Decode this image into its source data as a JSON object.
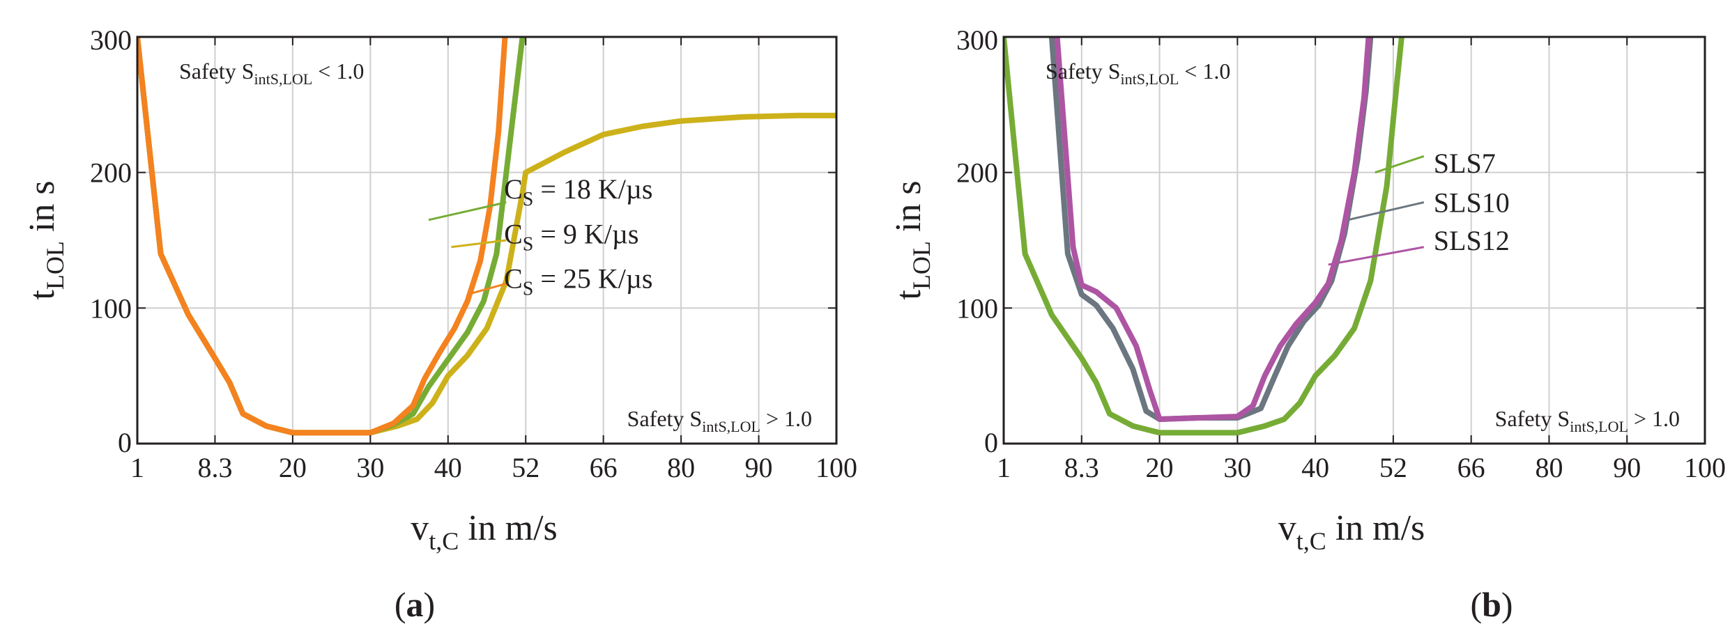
{
  "chart_data": [
    {
      "id": "a",
      "type": "line",
      "caption": {
        "open": "(",
        "letter": "a",
        "close": ")"
      },
      "xlabel": {
        "main": "v",
        "sub": "t,C",
        "rest": " in m/s"
      },
      "ylabel": {
        "main": "t",
        "sub": "LOL",
        "rest": " in s"
      },
      "x_ticks": [
        1,
        8.3,
        20,
        30,
        40,
        52,
        66,
        80,
        90,
        100
      ],
      "x_tick_labels": [
        "1",
        "8.3",
        "20",
        "30",
        "40",
        "52",
        "66",
        "80",
        "90",
        "100"
      ],
      "y_ticks": [
        0,
        100,
        200,
        300
      ],
      "y_tick_labels": [
        "0",
        "100",
        "200",
        "300"
      ],
      "ylim": [
        0,
        300
      ],
      "grid": true,
      "annotations": {
        "upper": {
          "main": "Safety S",
          "sub": "intS,LOL",
          "rest": " < 1.0"
        },
        "lower": {
          "main": "Safety S",
          "sub": "intS,LOL",
          "rest": " > 1.0"
        }
      },
      "series": [
        {
          "name": "C_S = 9 K/µs",
          "label_main": "C",
          "label_sub": "S",
          "label_rest": " = 9 K/µs",
          "color": "#cdb11a",
          "points": [
            [
              1,
              300
            ],
            [
              3.2,
              140
            ],
            [
              5.8,
              95
            ],
            [
              8.3,
              63
            ],
            [
              10.5,
              45
            ],
            [
              12.5,
              22
            ],
            [
              16,
              13
            ],
            [
              20,
              8
            ],
            [
              25,
              8
            ],
            [
              30,
              8
            ],
            [
              33.5,
              13
            ],
            [
              36,
              18
            ],
            [
              38,
              30
            ],
            [
              40,
              50
            ],
            [
              43,
              65
            ],
            [
              46,
              85
            ],
            [
              49,
              120
            ],
            [
              51.5,
              185
            ],
            [
              52,
              200
            ],
            [
              59,
              215
            ],
            [
              66,
              228
            ],
            [
              73,
              234
            ],
            [
              80,
              238
            ],
            [
              88,
              241
            ],
            [
              95,
              242
            ],
            [
              100,
              242
            ]
          ]
        },
        {
          "name": "C_S = 18 K/µs",
          "label_main": "C",
          "label_sub": "S",
          "label_rest": " = 18 K/µs",
          "color": "#76ac35",
          "points": [
            [
              1,
              300
            ],
            [
              3.2,
              140
            ],
            [
              5.8,
              95
            ],
            [
              8.3,
              63
            ],
            [
              10.5,
              45
            ],
            [
              12.5,
              22
            ],
            [
              16,
              13
            ],
            [
              20,
              8
            ],
            [
              25,
              8
            ],
            [
              30,
              8
            ],
            [
              33,
              14
            ],
            [
              35.5,
              22
            ],
            [
              37.5,
              42
            ],
            [
              40,
              62
            ],
            [
              43,
              82
            ],
            [
              45.5,
              105
            ],
            [
              47.5,
              140
            ],
            [
              49,
              200
            ],
            [
              50.5,
              260
            ],
            [
              51.5,
              300
            ]
          ]
        },
        {
          "name": "C_S = 25 K/µs",
          "label_main": "C",
          "label_sub": "S",
          "label_rest": " = 25 K/µs",
          "color": "#f4821f",
          "points": [
            [
              1,
              300
            ],
            [
              3.2,
              140
            ],
            [
              5.8,
              95
            ],
            [
              8.3,
              63
            ],
            [
              10.5,
              45
            ],
            [
              12.5,
              22
            ],
            [
              16,
              13
            ],
            [
              20,
              8
            ],
            [
              25,
              8
            ],
            [
              30,
              8
            ],
            [
              33,
              15
            ],
            [
              35.5,
              28
            ],
            [
              37,
              48
            ],
            [
              39,
              68
            ],
            [
              41,
              85
            ],
            [
              43,
              105
            ],
            [
              45,
              135
            ],
            [
              46.5,
              175
            ],
            [
              47.8,
              230
            ],
            [
              48.8,
              300
            ]
          ]
        }
      ],
      "legend": [
        {
          "series": 1,
          "label_x": 48,
          "label_y": 188,
          "line_from": [
            49,
            178
          ],
          "line_to": [
            37.5,
            165
          ]
        },
        {
          "series": 0,
          "label_x": 48,
          "label_y": 155,
          "line_from": [
            49,
            150
          ],
          "line_to": [
            40.5,
            145
          ]
        },
        {
          "series": 2,
          "label_x": 48,
          "label_y": 122,
          "line_from": [
            49,
            118
          ],
          "line_to": [
            43,
            110
          ]
        }
      ]
    },
    {
      "id": "b",
      "type": "line",
      "caption": {
        "open": "(",
        "letter": "b",
        "close": ")"
      },
      "xlabel": {
        "main": "v",
        "sub": "t,C",
        "rest": " in m/s"
      },
      "ylabel": {
        "main": "t",
        "sub": "LOL",
        "rest": " in s"
      },
      "x_ticks": [
        1,
        8.3,
        20,
        30,
        40,
        52,
        66,
        80,
        90,
        100
      ],
      "x_tick_labels": [
        "1",
        "8.3",
        "20",
        "30",
        "40",
        "52",
        "66",
        "80",
        "90",
        "100"
      ],
      "y_ticks": [
        0,
        100,
        200,
        300
      ],
      "y_tick_labels": [
        "0",
        "100",
        "200",
        "300"
      ],
      "ylim": [
        0,
        300
      ],
      "grid": true,
      "annotations": {
        "upper": {
          "main": "Safety S",
          "sub": "intS,LOL",
          "rest": " < 1.0"
        },
        "lower": {
          "main": "Safety S",
          "sub": "intS,LOL",
          "rest": " > 1.0"
        }
      },
      "series": [
        {
          "name": "SLS7",
          "label_main": "SLS7",
          "color": "#76ac35",
          "points": [
            [
              1,
              300
            ],
            [
              3,
              140
            ],
            [
              5.5,
              95
            ],
            [
              8.3,
              63
            ],
            [
              10.5,
              45
            ],
            [
              12.5,
              22
            ],
            [
              16,
              13
            ],
            [
              20,
              8
            ],
            [
              25,
              8
            ],
            [
              30,
              8
            ],
            [
              33.5,
              13
            ],
            [
              36,
              18
            ],
            [
              38,
              30
            ],
            [
              40,
              50
            ],
            [
              43,
              65
            ],
            [
              46,
              85
            ],
            [
              48.5,
              120
            ],
            [
              51,
              190
            ],
            [
              52.5,
              260
            ],
            [
              53.5,
              300
            ]
          ]
        },
        {
          "name": "SLS10",
          "label_main": "SLS10",
          "color": "#6b7680",
          "points": [
            [
              5.5,
              300
            ],
            [
              7,
              140
            ],
            [
              8.3,
              110
            ],
            [
              10.5,
              102
            ],
            [
              13,
              85
            ],
            [
              16,
              55
            ],
            [
              18,
              24
            ],
            [
              20,
              18
            ],
            [
              25,
              19
            ],
            [
              30,
              19
            ],
            [
              33,
              26
            ],
            [
              34.8,
              50
            ],
            [
              36.5,
              72
            ],
            [
              38.5,
              90
            ],
            [
              40.5,
              102
            ],
            [
              42.5,
              120
            ],
            [
              44.5,
              155
            ],
            [
              46.5,
              210
            ],
            [
              47.8,
              260
            ],
            [
              48.5,
              300
            ]
          ]
        },
        {
          "name": "SLS12",
          "label_main": "SLS12",
          "color": "#ad55a3",
          "points": [
            [
              6,
              300
            ],
            [
              7.5,
              145
            ],
            [
              8.3,
              117
            ],
            [
              10.5,
              112
            ],
            [
              13.5,
              100
            ],
            [
              16.5,
              72
            ],
            [
              18.5,
              40
            ],
            [
              20,
              18
            ],
            [
              25,
              19
            ],
            [
              30,
              20
            ],
            [
              32,
              28
            ],
            [
              33.5,
              50
            ],
            [
              35.5,
              72
            ],
            [
              37.5,
              88
            ],
            [
              40,
              104
            ],
            [
              42,
              118
            ],
            [
              44,
              150
            ],
            [
              46,
              200
            ],
            [
              47.5,
              255
            ],
            [
              48.2,
              300
            ]
          ]
        }
      ],
      "legend": [
        {
          "series": 0,
          "label_x": 58.5,
          "label_y": 207,
          "line_from": [
            57.5,
            212
          ],
          "line_to": [
            49.2,
            200
          ]
        },
        {
          "series": 1,
          "label_x": 58.5,
          "label_y": 178,
          "line_from": [
            57.5,
            178
          ],
          "line_to": [
            45,
            165
          ]
        },
        {
          "series": 2,
          "label_x": 58.5,
          "label_y": 150,
          "line_from": [
            57.5,
            145
          ],
          "line_to": [
            42,
            132
          ]
        }
      ]
    }
  ]
}
